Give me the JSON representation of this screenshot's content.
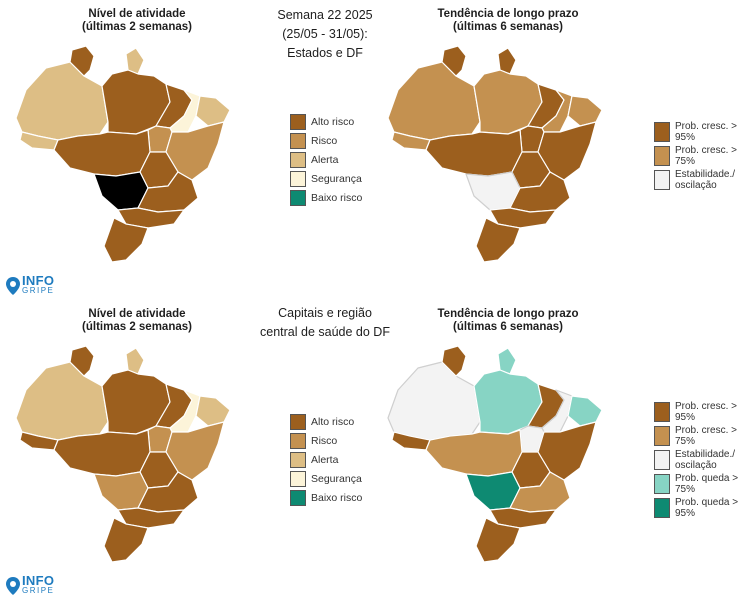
{
  "colors": {
    "dark": "#9c5f1e",
    "medium": "#c49150",
    "light": "#ddbe85",
    "pale": "#fcf4d9",
    "white": "#f3f3f3",
    "teal_light": "#87d4c4",
    "teal_dark": "#0e8a72",
    "border": "#ffffff"
  },
  "top": {
    "title_lines": [
      "Semana 22 2025",
      "(25/05 - 31/05):",
      "Estados e DF"
    ],
    "left_map": {
      "title_lines": [
        "Nível de atividade",
        "(últimas 2 semanas)"
      ],
      "icon": "brazil-states-map",
      "regions": {
        "north_west": "light",
        "amapa": "light",
        "north_main": "dark",
        "north_east_small": "light",
        "piaui": "pale",
        "northeast": "medium",
        "center_west": "dark",
        "goias": "medium",
        "southeast": "dark",
        "south": "dark",
        "se_coast": "dark"
      }
    },
    "left_legend": [
      {
        "label": "Alto risco",
        "color": "dark"
      },
      {
        "label": "Risco",
        "color": "medium"
      },
      {
        "label": "Alerta",
        "color": "light"
      },
      {
        "label": "Segurança",
        "color": "pale"
      },
      {
        "label": "Baixo risco",
        "color": "teal_dark"
      }
    ],
    "right_map": {
      "title_lines": [
        "Tendência de longo prazo",
        "(últimas 6 semanas)"
      ],
      "icon": "brazil-states-map",
      "regions": {
        "north_west": "medium",
        "amapa": "dark",
        "north_main": "medium",
        "north_east_small": "medium",
        "piaui": "medium",
        "northeast": "dark",
        "center_west": "dark",
        "goias": "dark",
        "southeast": "dark",
        "south": "dark",
        "ms": "white"
      }
    },
    "right_legend": [
      {
        "label": "Prob. cresc. > 95%",
        "color": "dark"
      },
      {
        "label": "Prob. cresc. > 75%",
        "color": "medium"
      },
      {
        "label": "Estabilidade./ oscilação",
        "color": "white"
      }
    ]
  },
  "bottom": {
    "title_lines": [
      "Capitais e região",
      "central de saúde do DF"
    ],
    "left_map": {
      "title_lines": [
        "Nível de atividade",
        "(últimas 2 semanas)"
      ],
      "icon": "brazil-capitals-map"
    },
    "left_legend": [
      {
        "label": "Alto risco",
        "color": "dark"
      },
      {
        "label": "Risco",
        "color": "medium"
      },
      {
        "label": "Alerta",
        "color": "light"
      },
      {
        "label": "Segurança",
        "color": "pale"
      },
      {
        "label": "Baixo risco",
        "color": "teal_dark"
      }
    ],
    "right_map": {
      "title_lines": [
        "Tendência de longo prazo",
        "(últimas 6 semanas)"
      ],
      "icon": "brazil-capitals-map"
    },
    "right_legend": [
      {
        "label": "Prob. cresc. > 95%",
        "color": "dark"
      },
      {
        "label": "Prob. cresc. > 75%",
        "color": "medium"
      },
      {
        "label": "Estabilidade./ oscilação",
        "color": "white"
      },
      {
        "label": "Prob. queda > 75%",
        "color": "teal_light"
      },
      {
        "label": "Prob. queda > 95%",
        "color": "teal_dark"
      }
    ]
  },
  "brand": {
    "name": "INFO",
    "sub": "GRIPE",
    "icon": "map-pin-icon"
  }
}
